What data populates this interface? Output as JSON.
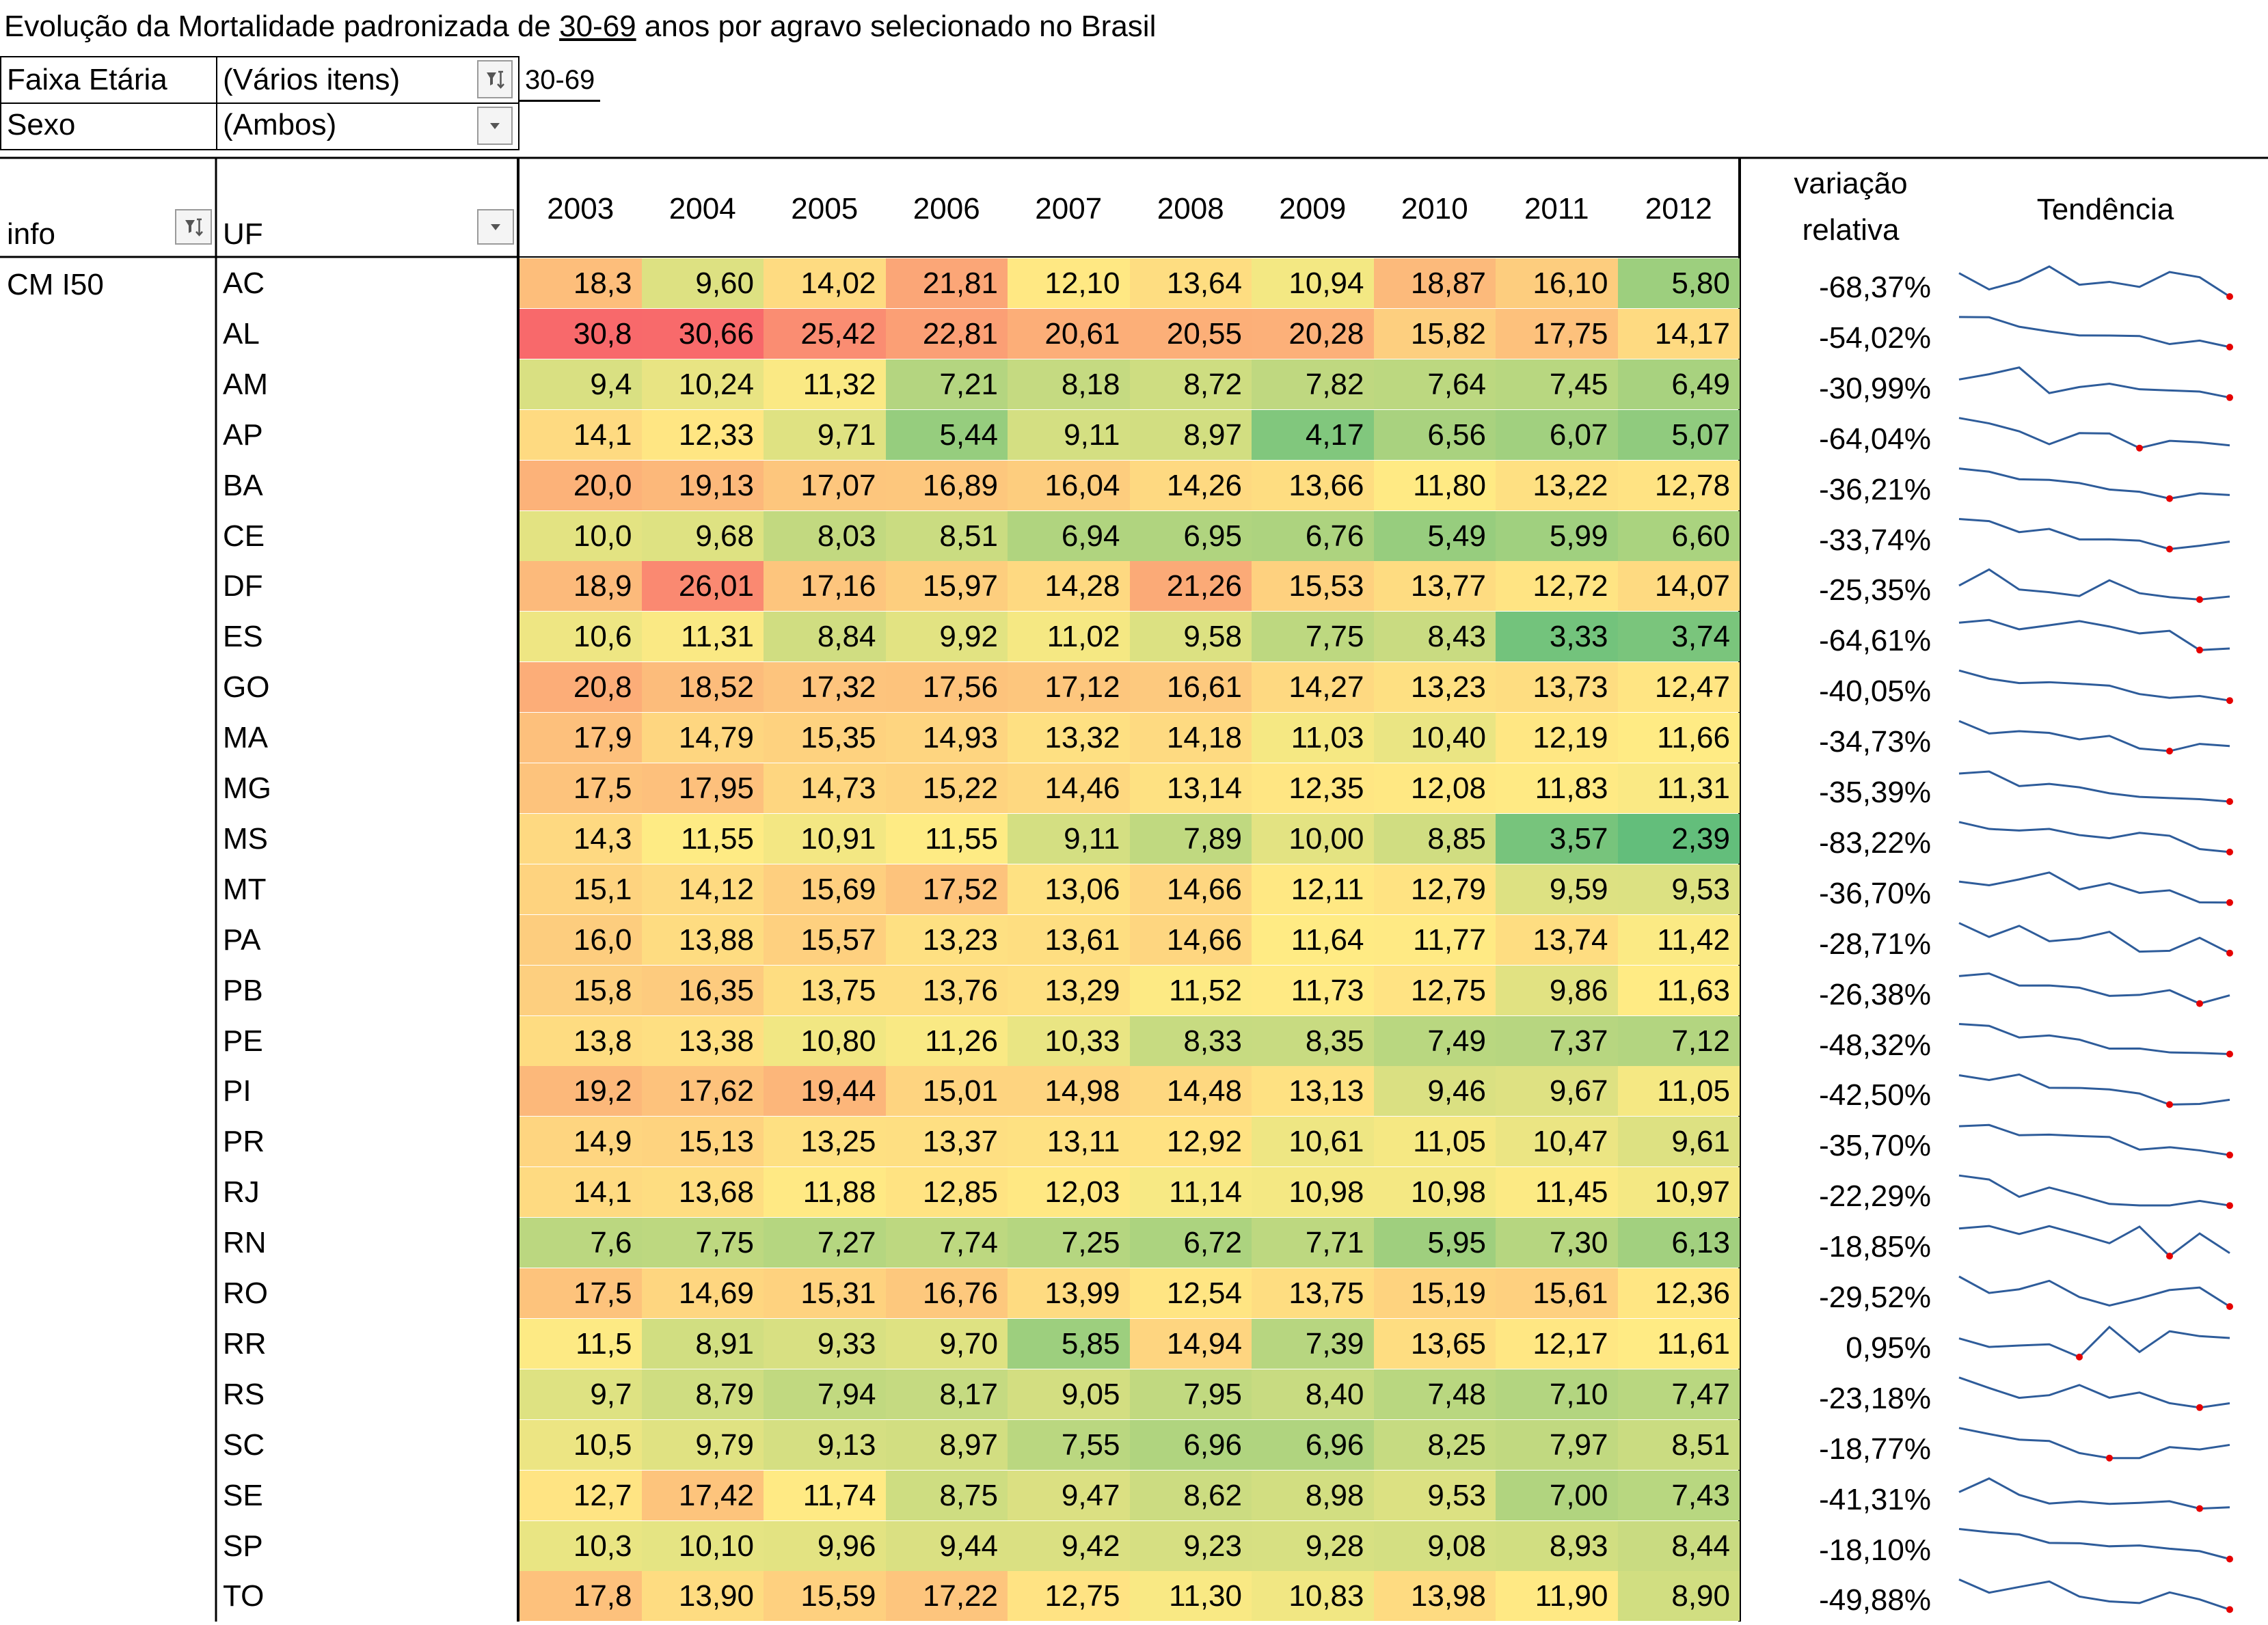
{
  "title": {
    "prefix": "Evolução da Mortalidade padronizada de ",
    "age_range": "30-69",
    "suffix": " anos por agravo selecionado no Brasil"
  },
  "filters": {
    "faixa_label": "Faixa Etária",
    "faixa_value": "(Vários itens)",
    "faixa_note": "30-69",
    "sexo_label": "Sexo",
    "sexo_value": "(Ambos)"
  },
  "headers": {
    "info": "info",
    "uf": "UF",
    "years": [
      "2003",
      "2004",
      "2005",
      "2006",
      "2007",
      "2008",
      "2009",
      "2010",
      "2011",
      "2012"
    ],
    "variacao_line1": "variação",
    "variacao_line2": "relativa",
    "tendencia": "Tendência"
  },
  "group_label": "CM I50",
  "rows": [
    {
      "uf": "AC",
      "values": [
        "18,3",
        "9,60",
        "14,02",
        "21,81",
        "12,10",
        "13,64",
        "10,94",
        "18,87",
        "16,10",
        "5,80"
      ],
      "variacao": "-68,37%"
    },
    {
      "uf": "AL",
      "values": [
        "30,8",
        "30,66",
        "25,42",
        "22,81",
        "20,61",
        "20,55",
        "20,28",
        "15,82",
        "17,75",
        "14,17"
      ],
      "variacao": "-54,02%"
    },
    {
      "uf": "AM",
      "values": [
        "9,4",
        "10,24",
        "11,32",
        "7,21",
        "8,18",
        "8,72",
        "7,82",
        "7,64",
        "7,45",
        "6,49"
      ],
      "variacao": "-30,99%"
    },
    {
      "uf": "AP",
      "values": [
        "14,1",
        "12,33",
        "9,71",
        "5,44",
        "9,11",
        "8,97",
        "4,17",
        "6,56",
        "6,07",
        "5,07"
      ],
      "variacao": "-64,04%"
    },
    {
      "uf": "BA",
      "values": [
        "20,0",
        "19,13",
        "17,07",
        "16,89",
        "16,04",
        "14,26",
        "13,66",
        "11,80",
        "13,22",
        "12,78"
      ],
      "variacao": "-36,21%"
    },
    {
      "uf": "CE",
      "values": [
        "10,0",
        "9,68",
        "8,03",
        "8,51",
        "6,94",
        "6,95",
        "6,76",
        "5,49",
        "5,99",
        "6,60"
      ],
      "variacao": "-33,74%"
    },
    {
      "uf": "DF",
      "values": [
        "18,9",
        "26,01",
        "17,16",
        "15,97",
        "14,28",
        "21,26",
        "15,53",
        "13,77",
        "12,72",
        "14,07"
      ],
      "variacao": "-25,35%"
    },
    {
      "uf": "ES",
      "values": [
        "10,6",
        "11,31",
        "8,84",
        "9,92",
        "11,02",
        "9,58",
        "7,75",
        "8,43",
        "3,33",
        "3,74"
      ],
      "variacao": "-64,61%"
    },
    {
      "uf": "GO",
      "values": [
        "20,8",
        "18,52",
        "17,32",
        "17,56",
        "17,12",
        "16,61",
        "14,27",
        "13,23",
        "13,73",
        "12,47"
      ],
      "variacao": "-40,05%"
    },
    {
      "uf": "MA",
      "values": [
        "17,9",
        "14,79",
        "15,35",
        "14,93",
        "13,32",
        "14,18",
        "11,03",
        "10,40",
        "12,19",
        "11,66"
      ],
      "variacao": "-34,73%"
    },
    {
      "uf": "MG",
      "values": [
        "17,5",
        "17,95",
        "14,73",
        "15,22",
        "14,46",
        "13,14",
        "12,35",
        "12,08",
        "11,83",
        "11,31"
      ],
      "variacao": "-35,39%"
    },
    {
      "uf": "MS",
      "values": [
        "14,3",
        "11,55",
        "10,91",
        "11,55",
        "9,11",
        "7,89",
        "10,00",
        "8,85",
        "3,57",
        "2,39"
      ],
      "variacao": "-83,22%"
    },
    {
      "uf": "MT",
      "values": [
        "15,1",
        "14,12",
        "15,69",
        "17,52",
        "13,06",
        "14,66",
        "12,11",
        "12,79",
        "9,59",
        "9,53"
      ],
      "variacao": "-36,70%"
    },
    {
      "uf": "PA",
      "values": [
        "16,0",
        "13,88",
        "15,57",
        "13,23",
        "13,61",
        "14,66",
        "11,64",
        "11,77",
        "13,74",
        "11,42"
      ],
      "variacao": "-28,71%"
    },
    {
      "uf": "PB",
      "values": [
        "15,8",
        "16,35",
        "13,75",
        "13,76",
        "13,29",
        "11,52",
        "11,73",
        "12,75",
        "9,86",
        "11,63"
      ],
      "variacao": "-26,38%"
    },
    {
      "uf": "PE",
      "values": [
        "13,8",
        "13,38",
        "10,80",
        "11,26",
        "10,33",
        "8,33",
        "8,35",
        "7,49",
        "7,37",
        "7,12"
      ],
      "variacao": "-48,32%"
    },
    {
      "uf": "PI",
      "values": [
        "19,2",
        "17,62",
        "19,44",
        "15,01",
        "14,98",
        "14,48",
        "13,13",
        "9,46",
        "9,67",
        "11,05"
      ],
      "variacao": "-42,50%"
    },
    {
      "uf": "PR",
      "values": [
        "14,9",
        "15,13",
        "13,25",
        "13,37",
        "13,11",
        "12,92",
        "10,61",
        "11,05",
        "10,47",
        "9,61"
      ],
      "variacao": "-35,70%"
    },
    {
      "uf": "RJ",
      "values": [
        "14,1",
        "13,68",
        "11,88",
        "12,85",
        "12,03",
        "11,14",
        "10,98",
        "10,98",
        "11,45",
        "10,97"
      ],
      "variacao": "-22,29%"
    },
    {
      "uf": "RN",
      "values": [
        "7,6",
        "7,75",
        "7,27",
        "7,74",
        "7,25",
        "6,72",
        "7,71",
        "5,95",
        "7,30",
        "6,13"
      ],
      "variacao": "-18,85%"
    },
    {
      "uf": "RO",
      "values": [
        "17,5",
        "14,69",
        "15,31",
        "16,76",
        "13,99",
        "12,54",
        "13,75",
        "15,19",
        "15,61",
        "12,36"
      ],
      "variacao": "-29,52%"
    },
    {
      "uf": "RR",
      "values": [
        "11,5",
        "8,91",
        "9,33",
        "9,70",
        "5,85",
        "14,94",
        "7,39",
        "13,65",
        "12,17",
        "11,61"
      ],
      "variacao": "0,95%"
    },
    {
      "uf": "RS",
      "values": [
        "9,7",
        "8,79",
        "7,94",
        "8,17",
        "9,05",
        "7,95",
        "8,40",
        "7,48",
        "7,10",
        "7,47"
      ],
      "variacao": "-23,18%"
    },
    {
      "uf": "SC",
      "values": [
        "10,5",
        "9,79",
        "9,13",
        "8,97",
        "7,55",
        "6,96",
        "6,96",
        "8,25",
        "7,97",
        "8,51"
      ],
      "variacao": "-18,77%"
    },
    {
      "uf": "SE",
      "values": [
        "12,7",
        "17,42",
        "11,74",
        "8,75",
        "9,47",
        "8,62",
        "8,98",
        "9,53",
        "7,00",
        "7,43"
      ],
      "variacao": "-41,31%"
    },
    {
      "uf": "SP",
      "values": [
        "10,3",
        "10,10",
        "9,96",
        "9,44",
        "9,42",
        "9,23",
        "9,28",
        "9,08",
        "8,93",
        "8,44"
      ],
      "variacao": "-18,10%"
    },
    {
      "uf": "TO",
      "values": [
        "17,8",
        "13,90",
        "15,59",
        "17,22",
        "12,75",
        "11,30",
        "10,83",
        "13,98",
        "11,90",
        "8,90"
      ],
      "variacao": "-49,88%"
    }
  ],
  "colors": {
    "heat_low": "#63be7b",
    "heat_mid": "#ffeb84",
    "heat_high": "#f8696b",
    "sparkline": "#2e5c9a",
    "spark_marker": "#e60000"
  },
  "icons": {
    "faixa_dropdown": "filter-funnel-icon",
    "sexo_dropdown": "dropdown-arrow-icon",
    "info_dropdown": "filter-funnel-icon",
    "uf_dropdown": "dropdown-arrow-icon"
  }
}
